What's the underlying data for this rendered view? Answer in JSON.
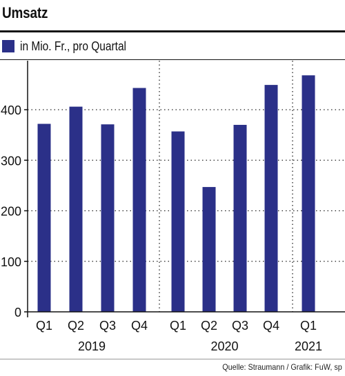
{
  "title": "Umsatz",
  "legend_label": "in Mio. Fr., pro Quartal",
  "source": "Quelle: Straumann / Grafik: FuW, sp",
  "colors": {
    "bar": "#2b3088",
    "grid": "#222222",
    "axis": "#111111"
  },
  "chart_data": {
    "type": "bar",
    "categories": [
      "Q1",
      "Q2",
      "Q3",
      "Q4",
      "Q1",
      "Q2",
      "Q3",
      "Q4",
      "Q1"
    ],
    "groups": [
      {
        "label": "2019",
        "indices": [
          0,
          1,
          2,
          3
        ]
      },
      {
        "label": "2020",
        "indices": [
          4,
          5,
          6,
          7
        ]
      },
      {
        "label": "2021",
        "indices": [
          8
        ]
      }
    ],
    "series": [
      {
        "values": [
          372,
          406,
          371,
          443,
          357,
          247,
          370,
          449,
          468
        ]
      }
    ],
    "ylim": [
      0,
      500
    ],
    "yticks": [
      0,
      100,
      200,
      300,
      400
    ],
    "grid": true,
    "legend": "top-left"
  }
}
